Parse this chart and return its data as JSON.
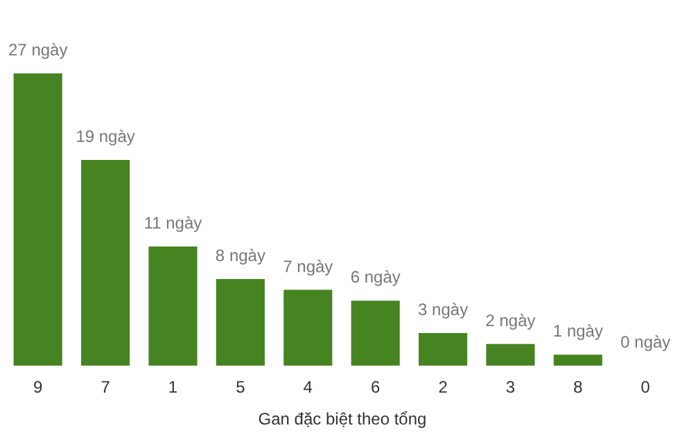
{
  "chart_data": {
    "type": "bar",
    "xlabel": "Gan đặc biệt theo tổng",
    "categories": [
      "9",
      "7",
      "1",
      "5",
      "4",
      "6",
      "2",
      "3",
      "8",
      "0"
    ],
    "values": [
      27,
      19,
      11,
      8,
      7,
      6,
      3,
      2,
      1,
      0
    ],
    "value_labels": [
      "27 ngày",
      "19 ngày",
      "11 ngày",
      "8 ngày",
      "7 ngày",
      "6 ngày",
      "3 ngày",
      "2 ngày",
      "1 ngày",
      "0 ngày"
    ],
    "color": "#468421"
  }
}
